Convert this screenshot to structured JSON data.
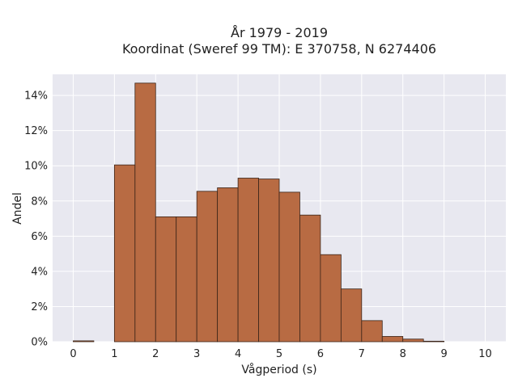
{
  "chart_data": {
    "type": "bar",
    "title": "År 1979 - 2019",
    "subtitle": "Koordinat (Sweref 99 TM): E 370758, N 6274406",
    "xlabel": "Vågperiod (s)",
    "ylabel": "Andel",
    "xlim": [
      -0.5,
      10.5
    ],
    "ylim": [
      0,
      15.2
    ],
    "x_ticks": [
      0,
      1,
      2,
      3,
      4,
      5,
      6,
      7,
      8,
      9,
      10
    ],
    "x_tick_labels": [
      "0",
      "1",
      "2",
      "3",
      "4",
      "5",
      "6",
      "7",
      "8",
      "9",
      "10"
    ],
    "y_ticks": [
      0,
      2,
      4,
      6,
      8,
      10,
      12,
      14
    ],
    "y_tick_labels": [
      "0%",
      "2%",
      "4%",
      "6%",
      "8%",
      "10%",
      "12%",
      "14%"
    ],
    "bin_width": 0.5,
    "bins": [
      {
        "start": 0.0,
        "value": 0.05
      },
      {
        "start": 0.5,
        "value": 0
      },
      {
        "start": 1.0,
        "value": 10.05
      },
      {
        "start": 1.5,
        "value": 14.7
      },
      {
        "start": 2.0,
        "value": 7.1
      },
      {
        "start": 2.5,
        "value": 7.1
      },
      {
        "start": 3.0,
        "value": 8.55
      },
      {
        "start": 3.5,
        "value": 8.75
      },
      {
        "start": 4.0,
        "value": 9.3
      },
      {
        "start": 4.5,
        "value": 9.25
      },
      {
        "start": 5.0,
        "value": 8.5
      },
      {
        "start": 5.5,
        "value": 7.2
      },
      {
        "start": 6.0,
        "value": 4.95
      },
      {
        "start": 6.5,
        "value": 3.0
      },
      {
        "start": 7.0,
        "value": 1.2
      },
      {
        "start": 7.5,
        "value": 0.3
      },
      {
        "start": 8.0,
        "value": 0.15
      },
      {
        "start": 8.5,
        "value": 0.03
      }
    ],
    "grid": true,
    "colors": {
      "bar_fill": "#b86b43",
      "bar_stroke": "#3a2418",
      "plot_background": "#e8e8f0",
      "grid": "#ffffff"
    }
  }
}
